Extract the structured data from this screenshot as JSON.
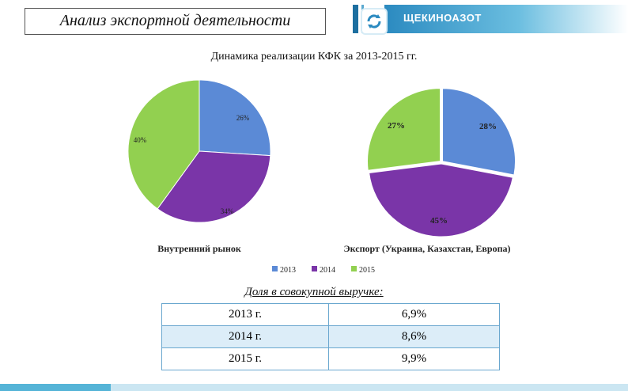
{
  "header": {
    "title": "Анализ экспортной деятельности",
    "brand": "ЩЕКИНОАЗОТ"
  },
  "subtitle": "Динамика реализации  КФК за 2013-2015 гг.",
  "colors": {
    "y2013": "#5b8ad6",
    "y2014": "#7a35a8",
    "y2015": "#92d050",
    "brand": "#2b8ac0"
  },
  "chart_data": [
    {
      "type": "pie",
      "xlabel": "Внутренний рынок",
      "series": [
        {
          "name": "2013",
          "value": 26,
          "label": "26%"
        },
        {
          "name": "2014",
          "value": 34,
          "label": "34%"
        },
        {
          "name": "2015",
          "value": 40,
          "label": "40%"
        }
      ],
      "legend": [
        "2013",
        "2014",
        "2015"
      ],
      "legend_position": "bottom"
    },
    {
      "type": "pie",
      "xlabel": "Экспорт (Украина, Казахстан, Европа)",
      "series": [
        {
          "name": "2013",
          "value": 28,
          "label": "28%"
        },
        {
          "name": "2014",
          "value": 45,
          "label": "45%"
        },
        {
          "name": "2015",
          "value": 27,
          "label": "27%"
        }
      ]
    }
  ],
  "share": {
    "caption": "Доля в совокупной выручке:",
    "rows": [
      {
        "year": "2013 г.",
        "value": "6,9%"
      },
      {
        "year": "2014 г.",
        "value": "8,6%"
      },
      {
        "year": "2015 г.",
        "value": "9,9%"
      }
    ]
  }
}
